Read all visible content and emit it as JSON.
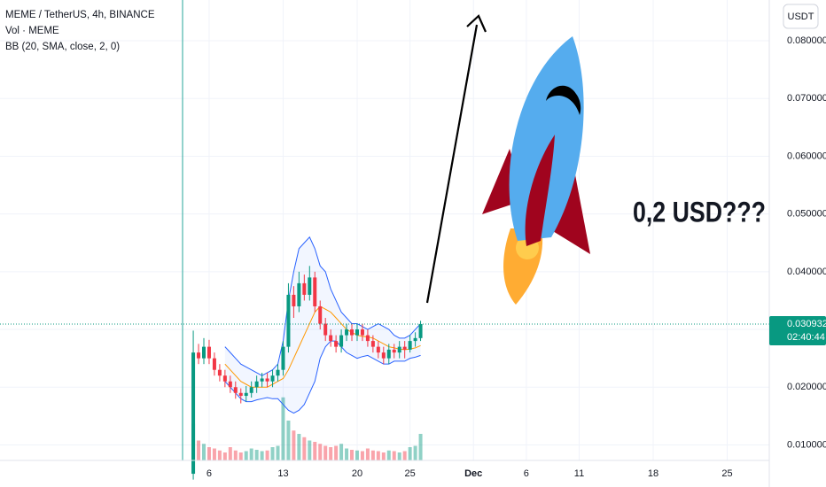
{
  "chart_data": {
    "type": "candlestick",
    "title": "MEME / TetherUS, 4h, BINANCE",
    "indicators": [
      "Vol · MEME",
      "BB (20, SMA, close, 2, 0)"
    ],
    "currency": "USDT",
    "annotation": "0,2 USD???",
    "countdown": "02:40:44",
    "colors": {
      "up": "#089981",
      "down": "#f23645",
      "band": "#2962ff",
      "basis": "#ff9800",
      "price_line": "#089981"
    },
    "xlim": [
      -13.78,
      58.98
    ],
    "xticks": [
      6,
      13,
      20,
      25,
      {
        "value": 31,
        "label": "Dec"
      },
      {
        "value": 36,
        "label": "6"
      },
      {
        "value": 41,
        "label": "11"
      },
      {
        "value": 48,
        "label": "18"
      },
      {
        "value": 55,
        "label": "25"
      }
    ],
    "ylim": [
      0.00271,
      0.08706
    ],
    "yticks": [
      {
        "value": 0.01,
        "label": "0.010000"
      },
      {
        "value": 0.02,
        "label": "0.020000"
      },
      {
        "value": 0.03,
        "label": "0.030000"
      },
      {
        "value": 0.04,
        "label": "0.040000"
      },
      {
        "value": 0.05,
        "label": "0.050000"
      },
      {
        "value": 0.06,
        "label": "0.060000"
      },
      {
        "value": 0.07,
        "label": "0.070000"
      },
      {
        "value": 0.08,
        "label": "0.080000"
      }
    ],
    "candles": {
      "x": [
        4.5,
        5,
        5.5,
        6,
        6.5,
        7,
        7.5,
        8,
        8.5,
        9,
        9.5,
        10,
        10.5,
        11,
        11.5,
        12,
        12.5,
        13,
        13.5,
        14,
        14.5,
        15,
        15.5,
        16,
        16.5,
        17,
        17.5,
        18,
        18.5,
        19,
        19.5,
        20,
        20.5,
        21,
        21.5,
        22,
        22.5,
        23,
        23.5,
        24,
        24.5,
        25,
        25.5,
        26
      ],
      "open": [
        0.005,
        0.026,
        0.025,
        0.027,
        0.025,
        0.023,
        0.022,
        0.021,
        0.02,
        0.019,
        0.0185,
        0.019,
        0.02,
        0.021,
        0.0215,
        0.021,
        0.022,
        0.023,
        0.027,
        0.036,
        0.034,
        0.038,
        0.036,
        0.039,
        0.034,
        0.031,
        0.029,
        0.028,
        0.027,
        0.029,
        0.03,
        0.029,
        0.03,
        0.029,
        0.028,
        0.027,
        0.026,
        0.025,
        0.0265,
        0.026,
        0.027,
        0.0265,
        0.028,
        0.0285
      ],
      "high": [
        0.0298,
        0.0275,
        0.0285,
        0.0282,
        0.026,
        0.024,
        0.023,
        0.022,
        0.021,
        0.0198,
        0.0202,
        0.021,
        0.022,
        0.0225,
        0.0225,
        0.023,
        0.024,
        0.028,
        0.038,
        0.0375,
        0.04,
        0.0395,
        0.041,
        0.04,
        0.035,
        0.032,
        0.03,
        0.029,
        0.03,
        0.031,
        0.031,
        0.031,
        0.031,
        0.03,
        0.029,
        0.028,
        0.027,
        0.0275,
        0.0275,
        0.028,
        0.028,
        0.029,
        0.0295,
        0.0315
      ],
      "low": [
        0.004,
        0.024,
        0.024,
        0.024,
        0.022,
        0.021,
        0.02,
        0.019,
        0.018,
        0.0172,
        0.0175,
        0.0182,
        0.019,
        0.02,
        0.02,
        0.02,
        0.021,
        0.022,
        0.026,
        0.032,
        0.033,
        0.035,
        0.035,
        0.033,
        0.03,
        0.028,
        0.027,
        0.026,
        0.026,
        0.028,
        0.028,
        0.028,
        0.028,
        0.027,
        0.026,
        0.025,
        0.024,
        0.024,
        0.025,
        0.025,
        0.025,
        0.026,
        0.027,
        0.028
      ],
      "close": [
        0.026,
        0.025,
        0.027,
        0.025,
        0.023,
        0.022,
        0.021,
        0.02,
        0.019,
        0.0185,
        0.019,
        0.02,
        0.021,
        0.0215,
        0.021,
        0.022,
        0.023,
        0.027,
        0.036,
        0.034,
        0.038,
        0.036,
        0.039,
        0.034,
        0.031,
        0.029,
        0.028,
        0.027,
        0.029,
        0.03,
        0.029,
        0.03,
        0.029,
        0.028,
        0.027,
        0.026,
        0.025,
        0.0265,
        0.026,
        0.027,
        0.0265,
        0.028,
        0.0285,
        0.030932
      ],
      "volume": [
        55,
        30,
        25,
        20,
        18,
        15,
        12,
        20,
        15,
        12,
        14,
        18,
        16,
        14,
        15,
        20,
        22,
        95,
        60,
        45,
        40,
        35,
        30,
        28,
        25,
        22,
        20,
        22,
        25,
        18,
        16,
        15,
        14,
        18,
        15,
        14,
        12,
        15,
        14,
        12,
        14,
        20,
        22,
        40
      ]
    },
    "volume_ylim": [
      0,
      100
    ],
    "bb": {
      "upper": [
        null,
        null,
        null,
        null,
        null,
        null,
        0.027,
        0.026,
        0.025,
        0.024,
        0.0235,
        0.023,
        0.0225,
        0.022,
        0.0225,
        0.023,
        0.024,
        0.028,
        0.035,
        0.04,
        0.044,
        0.045,
        0.046,
        0.044,
        0.041,
        0.04,
        0.037,
        0.035,
        0.033,
        0.032,
        0.031,
        0.031,
        0.0305,
        0.03,
        0.0305,
        0.031,
        0.0305,
        0.03,
        0.029,
        0.0285,
        0.0285,
        0.029,
        0.03,
        0.031
      ],
      "basis": [
        null,
        null,
        null,
        null,
        null,
        null,
        0.024,
        0.023,
        0.022,
        0.021,
        0.0205,
        0.02,
        0.02,
        0.02,
        0.02,
        0.0205,
        0.021,
        0.0215,
        0.023,
        0.025,
        0.027,
        0.029,
        0.031,
        0.033,
        0.034,
        0.0335,
        0.033,
        0.032,
        0.031,
        0.03,
        0.0295,
        0.029,
        0.0288,
        0.0287,
        0.0285,
        0.028,
        0.0275,
        0.027,
        0.0268,
        0.0266,
        0.0265,
        0.0266,
        0.0268,
        0.0272
      ],
      "lower": [
        null,
        null,
        null,
        null,
        null,
        null,
        0.021,
        0.02,
        0.019,
        0.018,
        0.0175,
        0.0175,
        0.0178,
        0.018,
        0.0182,
        0.018,
        0.018,
        0.017,
        0.016,
        0.0155,
        0.016,
        0.017,
        0.019,
        0.021,
        0.025,
        0.027,
        0.028,
        0.028,
        0.027,
        0.026,
        0.0255,
        0.025,
        0.0253,
        0.0255,
        0.025,
        0.0245,
        0.024,
        0.024,
        0.0245,
        0.0245,
        0.0245,
        0.025,
        0.0252,
        0.0255
      ]
    }
  }
}
